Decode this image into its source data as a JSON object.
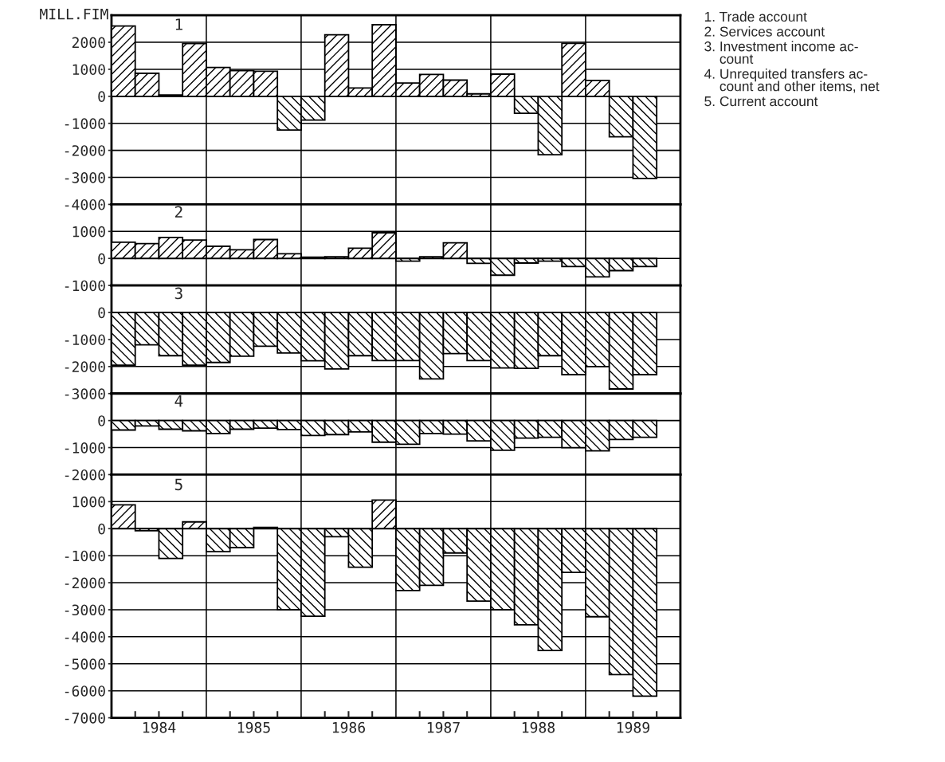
{
  "chart_data": [
    {
      "type": "bar",
      "ylabel": "MILL.FIM",
      "x": [
        1984.125,
        1984.375,
        1984.625,
        1984.875,
        1985.125,
        1985.375,
        1985.625,
        1985.875,
        1986.125,
        1986.375,
        1986.625,
        1986.875,
        1987.125,
        1987.375,
        1987.625,
        1987.875,
        1988.125,
        1988.375,
        1988.625,
        1988.875,
        1989.125,
        1989.375,
        1989.625
      ],
      "values": [
        2600,
        850,
        50,
        1950,
        1070,
        950,
        930,
        -1250,
        -880,
        2280,
        310,
        2650,
        490,
        810,
        600,
        90,
        820,
        -630,
        -2160,
        1960,
        590,
        -1500,
        -3040
      ],
      "color": "#000000",
      "xlim": [
        1984,
        1990
      ],
      "ylim": [
        -4000,
        3000
      ],
      "yticks": [
        -4000,
        -3000,
        -2000,
        -1000,
        0,
        1000,
        2000
      ],
      "grid": "y",
      "tick_labels": "y",
      "ref_lines": [
        {
          "axis": "x",
          "value": 1985
        },
        {
          "axis": "x",
          "value": 1986
        },
        {
          "axis": "x",
          "value": 1987
        },
        {
          "axis": "x",
          "value": 1988
        },
        {
          "axis": "x",
          "value": 1989
        }
      ],
      "annotations": [
        "1",
        "1. Trade account",
        "2. Services account",
        "3. Investment income ac-\n    count",
        "4. Unrequited transfers ac-\n    count and other items, net",
        "5. Current account"
      ]
    },
    {
      "type": "bar",
      "x": [
        1984.125,
        1984.375,
        1984.625,
        1984.875,
        1985.125,
        1985.375,
        1985.625,
        1985.875,
        1986.125,
        1986.375,
        1986.625,
        1986.875,
        1987.125,
        1987.375,
        1987.625,
        1987.875,
        1988.125,
        1988.375,
        1988.625,
        1988.875,
        1989.125,
        1989.375,
        1989.625
      ],
      "values": [
        600,
        550,
        780,
        680,
        450,
        320,
        700,
        170,
        50,
        60,
        380,
        950,
        -100,
        60,
        580,
        -180,
        -620,
        -170,
        -100,
        -300,
        -680,
        -450,
        -300
      ],
      "color": "#000000",
      "xlim": [
        1984,
        1990
      ],
      "ylim": [
        -1000,
        2000
      ],
      "yticks": [
        -1000,
        0,
        1000
      ],
      "grid": "y",
      "tick_labels": "y",
      "ref_lines": [
        {
          "axis": "x",
          "value": 1985
        },
        {
          "axis": "x",
          "value": 1986
        },
        {
          "axis": "x",
          "value": 1987
        },
        {
          "axis": "x",
          "value": 1988
        },
        {
          "axis": "x",
          "value": 1989
        }
      ],
      "annotations": [
        "2"
      ]
    },
    {
      "type": "bar",
      "x": [
        1984.125,
        1984.375,
        1984.625,
        1984.875,
        1985.125,
        1985.375,
        1985.625,
        1985.875,
        1986.125,
        1986.375,
        1986.625,
        1986.875,
        1987.125,
        1987.375,
        1987.625,
        1987.875,
        1988.125,
        1988.375,
        1988.625,
        1988.875,
        1989.125,
        1989.375,
        1989.625
      ],
      "values": [
        -1950,
        -1200,
        -1600,
        -1950,
        -1850,
        -1620,
        -1250,
        -1500,
        -1790,
        -2090,
        -1600,
        -1780,
        -1780,
        -2460,
        -1520,
        -1780,
        -2050,
        -2070,
        -1600,
        -2300,
        -2000,
        -2830,
        -2300
      ],
      "color": "#000000",
      "xlim": [
        1984,
        1990
      ],
      "ylim": [
        -3000,
        1000
      ],
      "yticks": [
        -3000,
        -2000,
        -1000,
        0
      ],
      "grid": "y",
      "tick_labels": "y",
      "ref_lines": [
        {
          "axis": "x",
          "value": 1985
        },
        {
          "axis": "x",
          "value": 1986
        },
        {
          "axis": "x",
          "value": 1987
        },
        {
          "axis": "x",
          "value": 1988
        },
        {
          "axis": "x",
          "value": 1989
        }
      ],
      "annotations": [
        "3"
      ]
    },
    {
      "type": "bar",
      "x": [
        1984.125,
        1984.375,
        1984.625,
        1984.875,
        1985.125,
        1985.375,
        1985.625,
        1985.875,
        1986.125,
        1986.375,
        1986.625,
        1986.875,
        1987.125,
        1987.375,
        1987.625,
        1987.875,
        1988.125,
        1988.375,
        1988.625,
        1988.875,
        1989.125,
        1989.375,
        1989.625
      ],
      "values": [
        -350,
        -200,
        -320,
        -380,
        -480,
        -320,
        -280,
        -330,
        -550,
        -520,
        -420,
        -800,
        -880,
        -480,
        -500,
        -750,
        -1100,
        -650,
        -620,
        -1000,
        -1120,
        -700,
        -620
      ],
      "color": "#000000",
      "xlim": [
        1984,
        1990
      ],
      "ylim": [
        -2000,
        1000
      ],
      "yticks": [
        -2000,
        -1000,
        0
      ],
      "grid": "y",
      "tick_labels": "y",
      "ref_lines": [
        {
          "axis": "x",
          "value": 1985
        },
        {
          "axis": "x",
          "value": 1986
        },
        {
          "axis": "x",
          "value": 1987
        },
        {
          "axis": "x",
          "value": 1988
        },
        {
          "axis": "x",
          "value": 1989
        }
      ],
      "annotations": [
        "4"
      ]
    },
    {
      "type": "bar",
      "x": [
        1984.125,
        1984.375,
        1984.625,
        1984.875,
        1985.125,
        1985.375,
        1985.625,
        1985.875,
        1986.125,
        1986.375,
        1986.625,
        1986.875,
        1987.125,
        1987.375,
        1987.625,
        1987.875,
        1988.125,
        1988.375,
        1988.625,
        1988.875,
        1989.125,
        1989.375,
        1989.625
      ],
      "values": [
        880,
        -80,
        -1100,
        250,
        -850,
        -700,
        50,
        -3000,
        -3240,
        -300,
        -1430,
        1060,
        -2290,
        -2100,
        -900,
        -2680,
        -3000,
        -3560,
        -4510,
        -1620,
        -3260,
        -5400,
        -6200
      ],
      "color": "#000000",
      "xlim": [
        1984,
        1990
      ],
      "ylim": [
        -7000,
        2000
      ],
      "yticks": [
        -7000,
        -6000,
        -5000,
        -4000,
        -3000,
        -2000,
        -1000,
        0,
        1000
      ],
      "grid": "y",
      "xticks": [
        {
          "value": 1984.25,
          "label": null
        },
        {
          "value": 1984.5,
          "label": "1984"
        },
        {
          "value": 1984.75,
          "label": null
        },
        {
          "value": 1985.25,
          "label": null
        },
        {
          "value": 1985.5,
          "label": "1985"
        },
        {
          "value": 1985.75,
          "label": null
        },
        {
          "value": 1986.25,
          "label": null
        },
        {
          "value": 1986.5,
          "label": "1986"
        },
        {
          "value": 1986.75,
          "label": null
        },
        {
          "value": 1987.25,
          "label": null
        },
        {
          "value": 1987.5,
          "label": "1987"
        },
        {
          "value": 1987.75,
          "label": null
        },
        {
          "value": 1988.25,
          "label": null
        },
        {
          "value": 1988.5,
          "label": "1988"
        },
        {
          "value": 1988.75,
          "label": null
        },
        {
          "value": 1989.25,
          "label": null
        },
        {
          "value": 1989.5,
          "label": "1989"
        },
        {
          "value": 1989.75,
          "label": null
        }
      ],
      "ref_lines": [
        {
          "axis": "x",
          "value": 1985
        },
        {
          "axis": "x",
          "value": 1986
        },
        {
          "axis": "x",
          "value": 1987
        },
        {
          "axis": "x",
          "value": 1988
        },
        {
          "axis": "x",
          "value": 1989
        }
      ],
      "annotations": [
        "5"
      ]
    }
  ]
}
